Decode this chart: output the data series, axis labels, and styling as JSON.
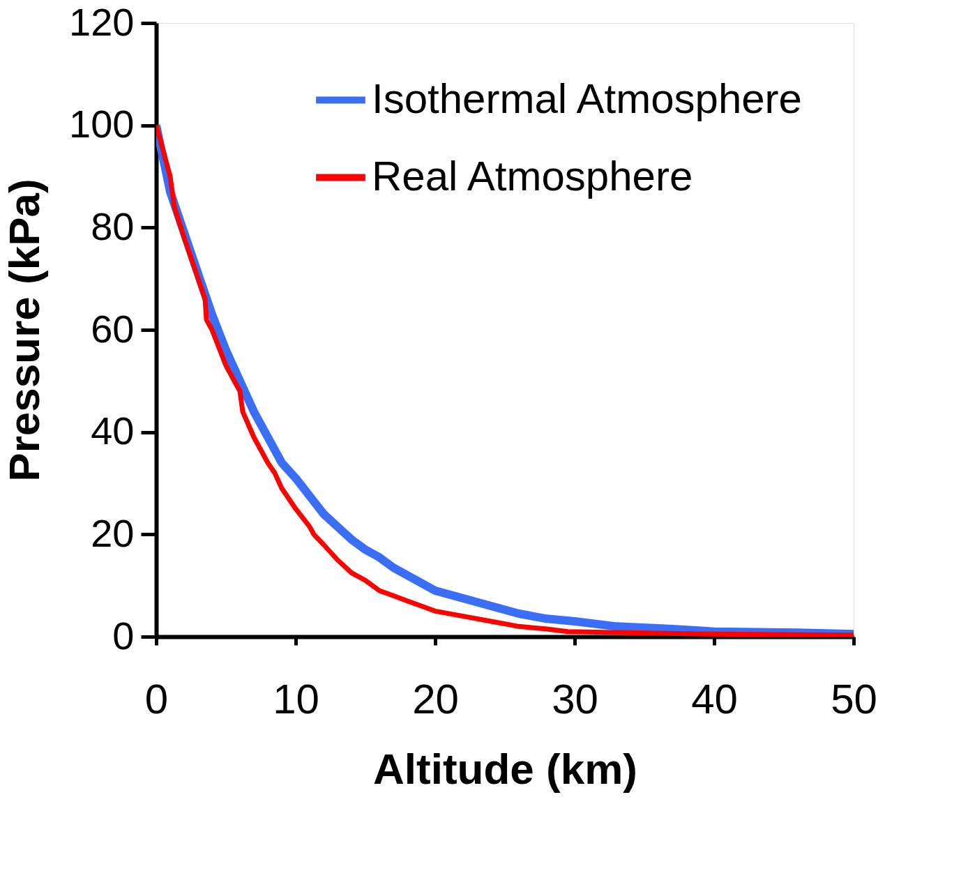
{
  "chart_data": {
    "type": "line",
    "xlabel": "Altitude (km)",
    "ylabel": "Pressure (kPa)",
    "xlim": [
      0,
      50
    ],
    "xticks": [
      0,
      10,
      20,
      30,
      40,
      50
    ],
    "ylim": [
      0,
      120
    ],
    "yticks": [
      0,
      20,
      40,
      60,
      80,
      100,
      120
    ],
    "grid": false,
    "legend": "top right",
    "line_style": "solid",
    "marker": "none",
    "series": [
      {
        "name": "Isothermal Atmosphere",
        "color": "#3a6ef7",
        "x": [
          0,
          1,
          2,
          3,
          4,
          5,
          6,
          7,
          8,
          9,
          10,
          11,
          12,
          13,
          14,
          15,
          16,
          17,
          18,
          19,
          20,
          22,
          24,
          26,
          28,
          30,
          33,
          37,
          40,
          46,
          50
        ],
        "values": [
          100,
          87,
          79,
          71,
          63,
          56,
          50,
          44,
          39,
          34,
          31,
          27.5,
          24,
          21.5,
          19,
          17,
          15.5,
          13.5,
          12,
          10.5,
          9,
          7.5,
          6,
          4.5,
          3.5,
          3,
          2,
          1.5,
          1,
          0.8,
          0.5
        ]
      },
      {
        "name": "Real Atmosphere",
        "color": "#ff0000",
        "x": [
          0,
          1,
          1.3,
          2,
          3,
          3.5,
          3.6,
          4,
          5,
          6,
          6.2,
          7,
          8,
          8.5,
          9,
          10,
          11,
          11.3,
          12,
          13,
          14,
          15,
          16,
          17,
          18,
          19,
          20,
          22,
          24,
          26,
          28,
          29.5,
          35,
          40,
          50
        ],
        "values": [
          100,
          90,
          84,
          78,
          70,
          66,
          62,
          60,
          53,
          48,
          44,
          39,
          34,
          32,
          29,
          25,
          21.5,
          20,
          18,
          15,
          12.5,
          11,
          9,
          8,
          7,
          6,
          5,
          4,
          3,
          2,
          1.5,
          1,
          0.7,
          0.5,
          0.3
        ]
      }
    ]
  }
}
